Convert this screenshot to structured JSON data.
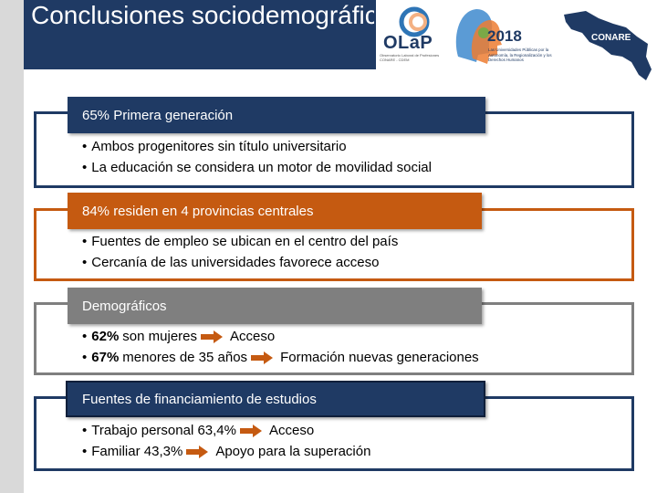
{
  "title": "Conclusiones sociodemográficas",
  "logos": {
    "olap": "OLaP",
    "olap_sub": "Observatorio Laboral de Profesiones CONARE - CDEM",
    "year": "2018",
    "year_sub": "Las Universidades Públicas por la Autonomía, la Regionalización y los Derechos Humanos",
    "conare": "CONARE"
  },
  "sections": [
    {
      "header": "65% Primera generación",
      "items": [
        {
          "text": "Ambos progenitores sin título universitario"
        },
        {
          "text": "La educación se considera un motor de movilidad social"
        }
      ]
    },
    {
      "header": "84% residen en 4 provincias centrales",
      "items": [
        {
          "text": "Fuentes de empleo se ubican en el centro del país"
        },
        {
          "text": "Cercanía de las universidades favorece acceso"
        }
      ]
    },
    {
      "header": "Demográficos",
      "items": [
        {
          "bold": "62%",
          "text": "son mujeres",
          "result": "Acceso"
        },
        {
          "bold": "67%",
          "text": "menores de 35 años",
          "result": "Formación nuevas generaciones"
        }
      ]
    },
    {
      "header": "Fuentes de financiamiento de estudios",
      "items": [
        {
          "text": "Trabajo personal 63,4%",
          "result": "Acceso"
        },
        {
          "text": "Familiar 43,3%",
          "result": "Apoyo para la superación"
        }
      ]
    }
  ],
  "colors": {
    "navy": "#1f3a64",
    "orange": "#c55a11",
    "gray": "#7f7f7f",
    "arrow": "#c55a11"
  }
}
